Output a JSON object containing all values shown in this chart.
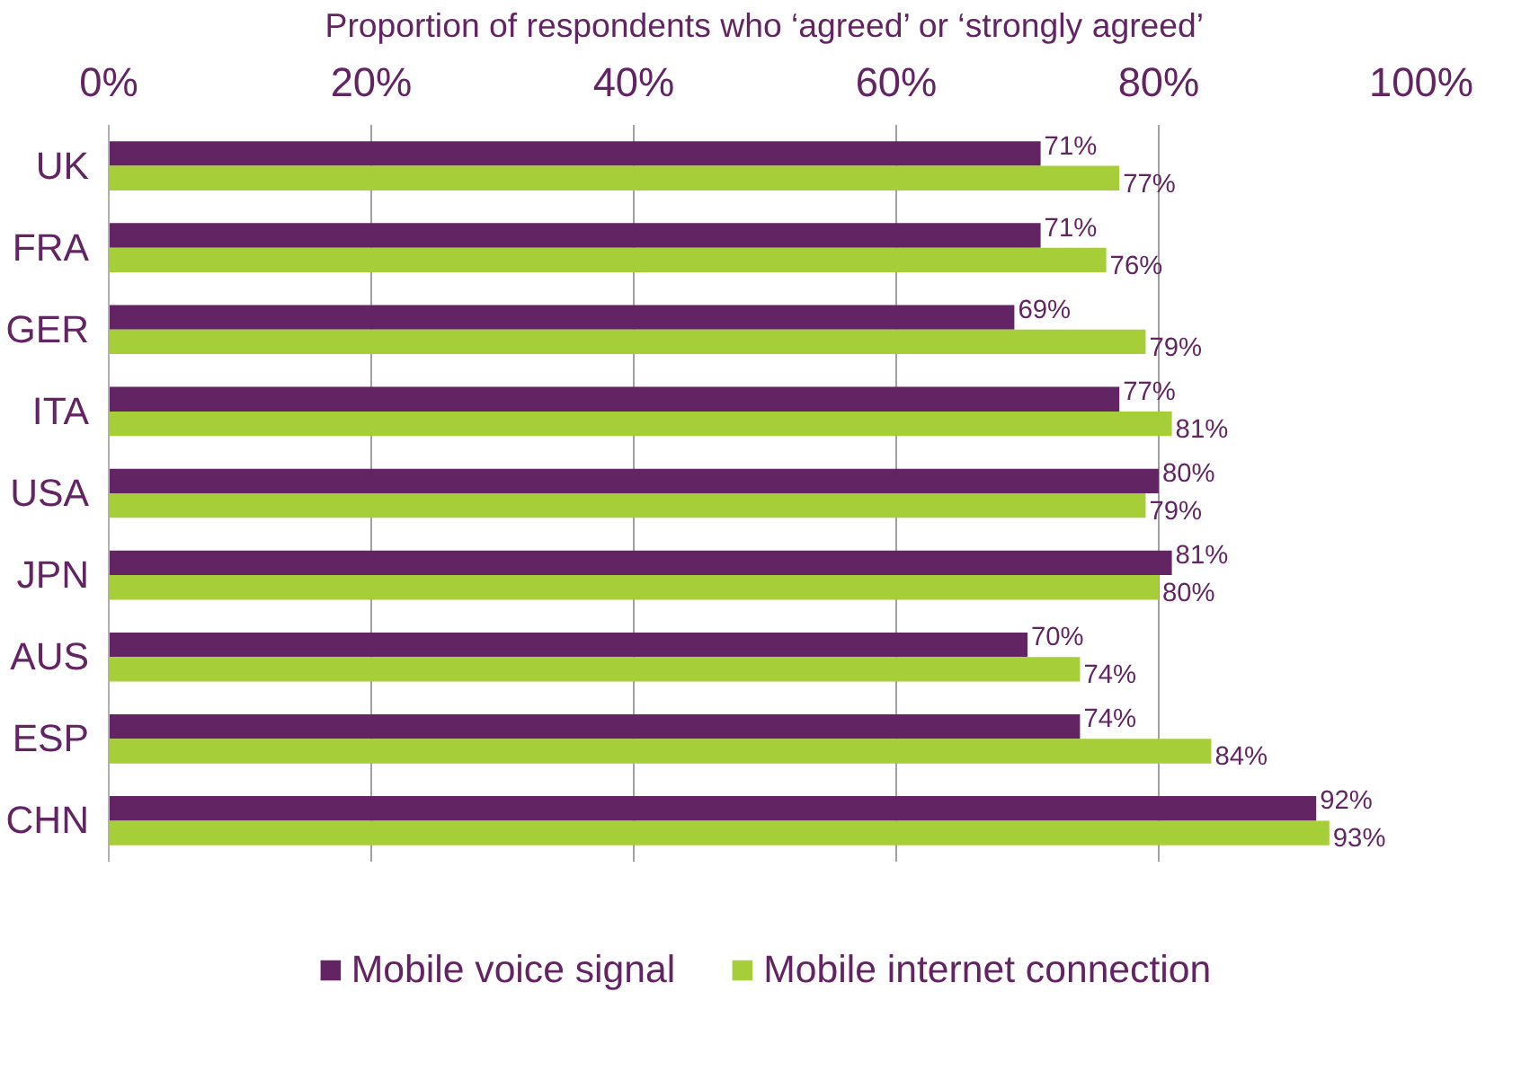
{
  "chart_data": {
    "type": "bar",
    "orientation": "horizontal",
    "xlabel": "Proportion of respondents who ‘agreed’ or ‘strongly agreed’",
    "categories": [
      "UK",
      "FRA",
      "GER",
      "ITA",
      "USA",
      "JPN",
      "AUS",
      "ESP",
      "CHN"
    ],
    "series": [
      {
        "name": "Mobile voice signal",
        "color": "#632463",
        "values": [
          71,
          71,
          69,
          77,
          80,
          81,
          70,
          74,
          92
        ],
        "value_labels": [
          "71%",
          "71%",
          "69%",
          "77%",
          "80%",
          "81%",
          "70%",
          "74%",
          "92%"
        ]
      },
      {
        "name": "Mobile internet connection",
        "color": "#a6ce39",
        "values": [
          77,
          76,
          79,
          81,
          79,
          80,
          74,
          84,
          93
        ],
        "value_labels": [
          "77%",
          "76%",
          "79%",
          "81%",
          "79%",
          "80%",
          "74%",
          "84%",
          "93%"
        ]
      }
    ],
    "xlim": [
      0,
      100
    ],
    "xticks": [
      {
        "value": 0,
        "label": "0%"
      },
      {
        "value": 20,
        "label": "20%"
      },
      {
        "value": 40,
        "label": "40%"
      },
      {
        "value": 60,
        "label": "60%"
      },
      {
        "value": 80,
        "label": "80%"
      },
      {
        "value": 100,
        "label": "100%"
      }
    ],
    "grid": "x",
    "legend": "bottom"
  }
}
